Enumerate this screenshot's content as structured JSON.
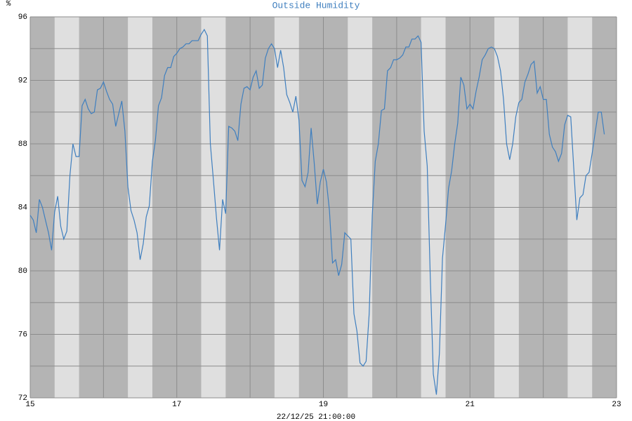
{
  "chart_data": {
    "type": "line",
    "title": "Outside Humidity",
    "y_unit": "%",
    "x_label": "22/12/25 21:00:00",
    "xlim": [
      15,
      23
    ],
    "xticks": [
      15,
      17,
      19,
      21,
      23
    ],
    "xminor_ticks": [
      16,
      18,
      20,
      22
    ],
    "ylim": [
      72,
      96
    ],
    "yticks": [
      72,
      76,
      80,
      84,
      88,
      92,
      96
    ],
    "yminor_ticks": [
      74,
      78,
      82,
      86,
      90,
      94
    ],
    "grid": true,
    "night_color": "#b4b4b4",
    "day_color": "#dfdfdf",
    "daylight_bands": [
      [
        15.333,
        15.667
      ],
      [
        16.333,
        16.667
      ],
      [
        17.333,
        17.667
      ],
      [
        18.333,
        18.667
      ],
      [
        19.333,
        19.667
      ],
      [
        20.333,
        20.667
      ],
      [
        21.333,
        21.667
      ],
      [
        22.333,
        22.667
      ]
    ],
    "series": [
      {
        "color": "#3f7fbf",
        "x": [
          15,
          15.042,
          15.083,
          15.125,
          15.167,
          15.208,
          15.25,
          15.292,
          15.333,
          15.375,
          15.417,
          15.458,
          15.5,
          15.542,
          15.583,
          15.625,
          15.667,
          15.708,
          15.75,
          15.792,
          15.833,
          15.875,
          15.917,
          15.958,
          16,
          16.042,
          16.083,
          16.125,
          16.167,
          16.208,
          16.25,
          16.292,
          16.333,
          16.375,
          16.417,
          16.458,
          16.5,
          16.542,
          16.583,
          16.625,
          16.667,
          16.708,
          16.75,
          16.792,
          16.833,
          16.875,
          16.917,
          16.958,
          17,
          17.042,
          17.083,
          17.125,
          17.167,
          17.208,
          17.25,
          17.292,
          17.333,
          17.375,
          17.417,
          17.458,
          17.5,
          17.542,
          17.583,
          17.625,
          17.667,
          17.708,
          17.75,
          17.792,
          17.833,
          17.875,
          17.917,
          17.958,
          18,
          18.042,
          18.083,
          18.125,
          18.167,
          18.208,
          18.25,
          18.292,
          18.333,
          18.375,
          18.417,
          18.458,
          18.5,
          18.542,
          18.583,
          18.625,
          18.667,
          18.708,
          18.75,
          18.792,
          18.833,
          18.875,
          18.917,
          18.958,
          19,
          19.042,
          19.083,
          19.125,
          19.167,
          19.208,
          19.25,
          19.292,
          19.333,
          19.375,
          19.417,
          19.458,
          19.5,
          19.542,
          19.583,
          19.625,
          19.667,
          19.708,
          19.75,
          19.792,
          19.833,
          19.875,
          19.917,
          19.958,
          20,
          20.042,
          20.083,
          20.125,
          20.167,
          20.208,
          20.25,
          20.292,
          20.333,
          20.375,
          20.417,
          20.458,
          20.5,
          20.542,
          20.583,
          20.625,
          20.667,
          20.708,
          20.75,
          20.792,
          20.833,
          20.875,
          20.917,
          20.958,
          21,
          21.042,
          21.083,
          21.125,
          21.167,
          21.208,
          21.25,
          21.292,
          21.333,
          21.375,
          21.417,
          21.458,
          21.5,
          21.542,
          21.583,
          21.625,
          21.667,
          21.708,
          21.75,
          21.792,
          21.833,
          21.875,
          21.917,
          21.958,
          22,
          22.042,
          22.083,
          22.125,
          22.167,
          22.208,
          22.25,
          22.292,
          22.333,
          22.375,
          22.417,
          22.458,
          22.5,
          22.542,
          22.583,
          22.625,
          22.667,
          22.708,
          22.75,
          22.792,
          22.833
        ],
        "values": [
          83.5,
          83.2,
          82.4,
          84.5,
          84.0,
          83.2,
          82.4,
          81.3,
          83.7,
          84.7,
          82.8,
          82.0,
          82.5,
          86.0,
          88.0,
          87.2,
          87.2,
          90.4,
          90.8,
          90.2,
          89.9,
          90.0,
          91.4,
          91.5,
          91.9,
          91.3,
          90.8,
          90.5,
          89.1,
          89.9,
          90.7,
          88.8,
          85.3,
          83.8,
          83.2,
          82.4,
          80.7,
          81.7,
          83.4,
          84.1,
          86.9,
          88.2,
          90.4,
          90.9,
          92.3,
          92.8,
          92.8,
          93.5,
          93.7,
          94.0,
          94.1,
          94.3,
          94.3,
          94.5,
          94.5,
          94.5,
          94.9,
          95.2,
          94.8,
          88.0,
          85.7,
          83.3,
          81.3,
          84.5,
          83.6,
          89.1,
          89.0,
          88.8,
          88.2,
          90.5,
          91.5,
          91.6,
          91.4,
          92.2,
          92.6,
          91.5,
          91.7,
          93.4,
          94.0,
          94.3,
          94.0,
          92.8,
          93.9,
          92.8,
          91.1,
          90.6,
          90.0,
          91.0,
          89.5,
          85.7,
          85.3,
          86.2,
          89.0,
          86.8,
          84.2,
          85.6,
          86.4,
          85.6,
          83.8,
          80.5,
          80.7,
          79.7,
          80.4,
          82.4,
          82.2,
          82.0,
          77.3,
          76.2,
          74.2,
          74.0,
          74.3,
          77.3,
          83.5,
          86.9,
          88.0,
          90.1,
          90.2,
          92.6,
          92.8,
          93.3,
          93.3,
          93.4,
          93.6,
          94.1,
          94.1,
          94.6,
          94.6,
          94.8,
          94.4,
          88.8,
          86.6,
          79.7,
          73.5,
          72.2,
          74.8,
          80.8,
          82.9,
          85.2,
          86.3,
          88.0,
          89.3,
          92.2,
          91.7,
          90.2,
          90.5,
          90.2,
          91.3,
          92.2,
          93.3,
          93.6,
          94.0,
          94.1,
          94.0,
          93.5,
          92.6,
          90.8,
          88.0,
          87.0,
          88.0,
          89.7,
          90.6,
          90.8,
          91.9,
          92.4,
          93.0,
          93.2,
          91.2,
          91.6,
          90.8,
          90.8,
          88.6,
          87.8,
          87.5,
          86.9,
          87.4,
          89.2,
          89.8,
          89.7,
          86.4,
          83.2,
          84.6,
          84.8,
          86.0,
          86.2,
          87.4,
          88.7,
          90.0,
          90.0,
          88.6
        ]
      }
    ]
  }
}
